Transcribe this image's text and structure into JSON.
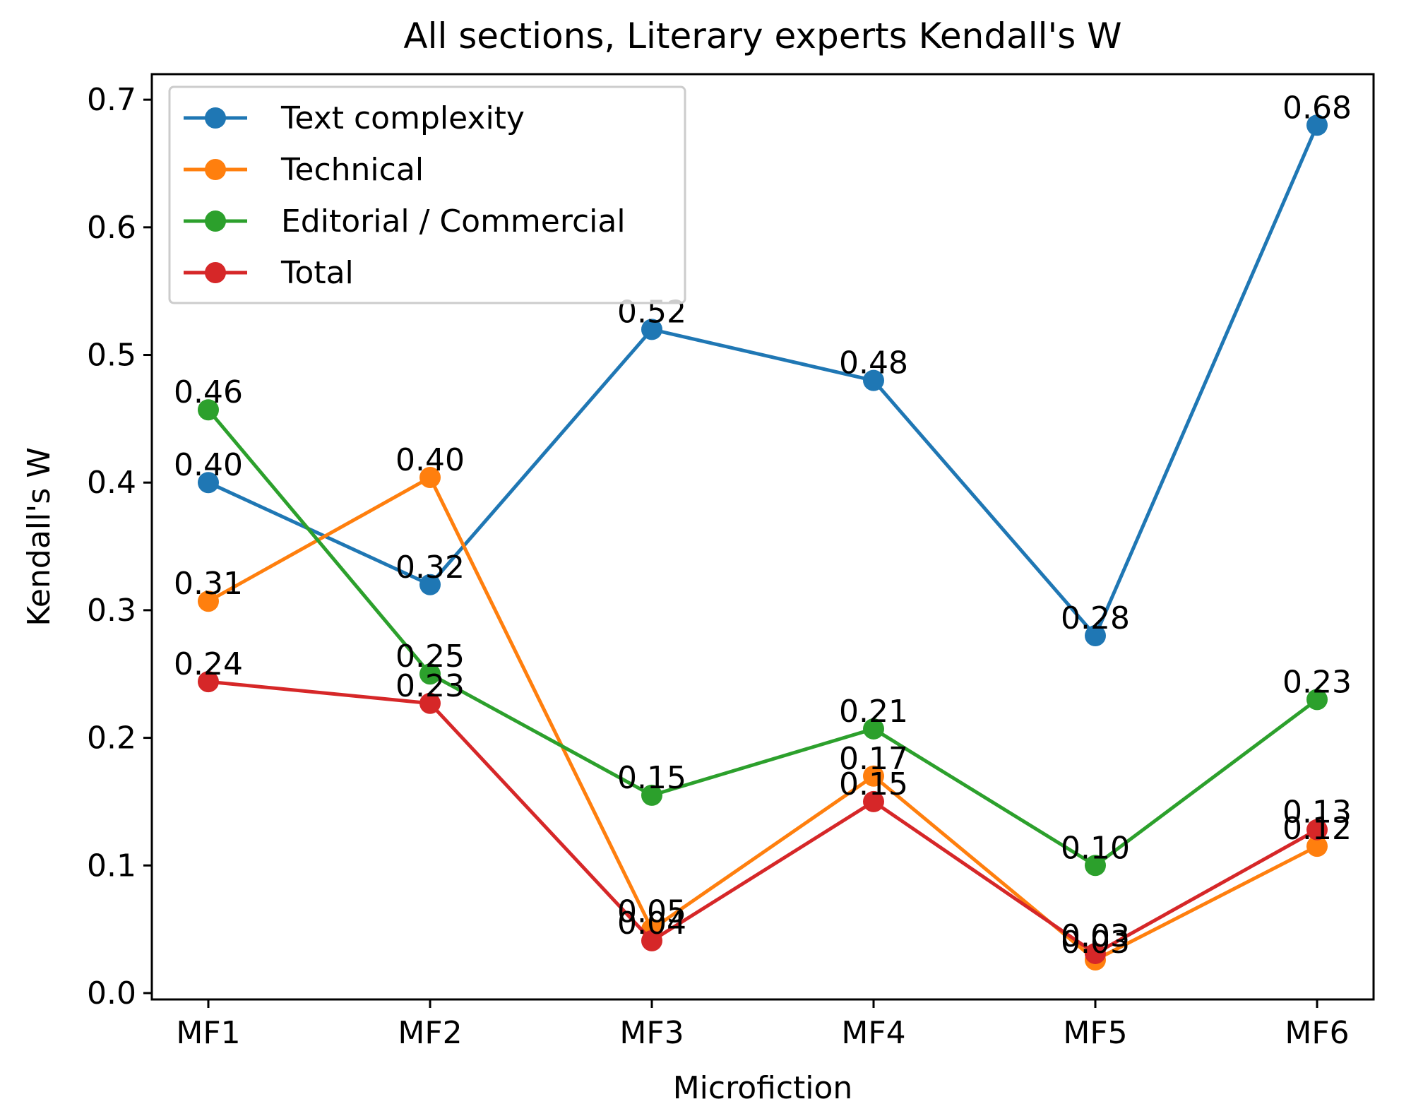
{
  "chart_data": {
    "type": "line",
    "title": "All sections, Literary experts Kendall's W",
    "xlabel": "Microfiction",
    "ylabel": "Kendall's W",
    "categories": [
      "MF1",
      "MF2",
      "MF3",
      "MF4",
      "MF5",
      "MF6"
    ],
    "ylim": [
      -0.005,
      0.72
    ],
    "yticks": [
      0.0,
      0.1,
      0.2,
      0.3,
      0.4,
      0.5,
      0.6,
      0.7
    ],
    "ytick_labels": [
      "0.0",
      "0.1",
      "0.2",
      "0.3",
      "0.4",
      "0.5",
      "0.6",
      "0.7"
    ],
    "grid": false,
    "legend_position": "upper-left",
    "series": [
      {
        "name": "Text complexity",
        "color": "#1f77b4",
        "values": [
          0.4,
          0.32,
          0.52,
          0.48,
          0.28,
          0.68
        ],
        "labels": [
          "0.40",
          "0.32",
          "0.52",
          "0.48",
          "0.28",
          "0.68"
        ]
      },
      {
        "name": "Technical",
        "color": "#ff7f0e",
        "values": [
          0.307,
          0.404,
          0.05,
          0.17,
          0.026,
          0.115
        ],
        "labels": [
          "0.31",
          "0.40",
          "0.05",
          "0.17",
          "0.03",
          "0.12"
        ]
      },
      {
        "name": "Editorial / Commercial",
        "color": "#2ca02c",
        "values": [
          0.457,
          0.25,
          0.155,
          0.207,
          0.1,
          0.23
        ],
        "labels": [
          "0.46",
          "0.25",
          "0.15",
          "0.21",
          "0.10",
          "0.23"
        ]
      },
      {
        "name": "Total",
        "color": "#d62728",
        "values": [
          0.244,
          0.227,
          0.041,
          0.15,
          0.031,
          0.128
        ],
        "labels": [
          "0.24",
          "0.23",
          "0.04",
          "0.15",
          "0.03",
          "0.13"
        ]
      }
    ]
  }
}
